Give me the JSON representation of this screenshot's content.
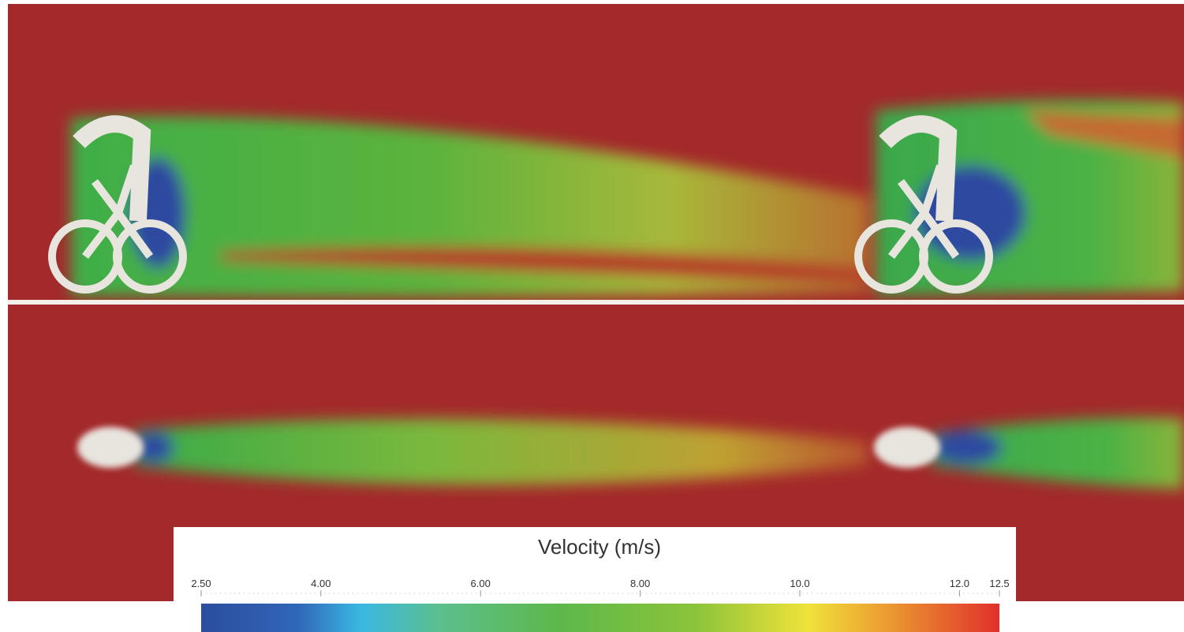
{
  "colorbar": {
    "title": "Velocity (m/s)",
    "range": [
      2.5,
      12.5
    ],
    "ticks": [
      {
        "value": 2.5,
        "label": "2.50"
      },
      {
        "value": 4,
        "label": "4.00"
      },
      {
        "value": 6,
        "label": "6.00"
      },
      {
        "value": 8,
        "label": "8.00"
      },
      {
        "value": 10,
        "label": "10.0"
      },
      {
        "value": 12,
        "label": "12.0"
      },
      {
        "value": 12.5,
        "label": "12.5"
      }
    ]
  }
}
